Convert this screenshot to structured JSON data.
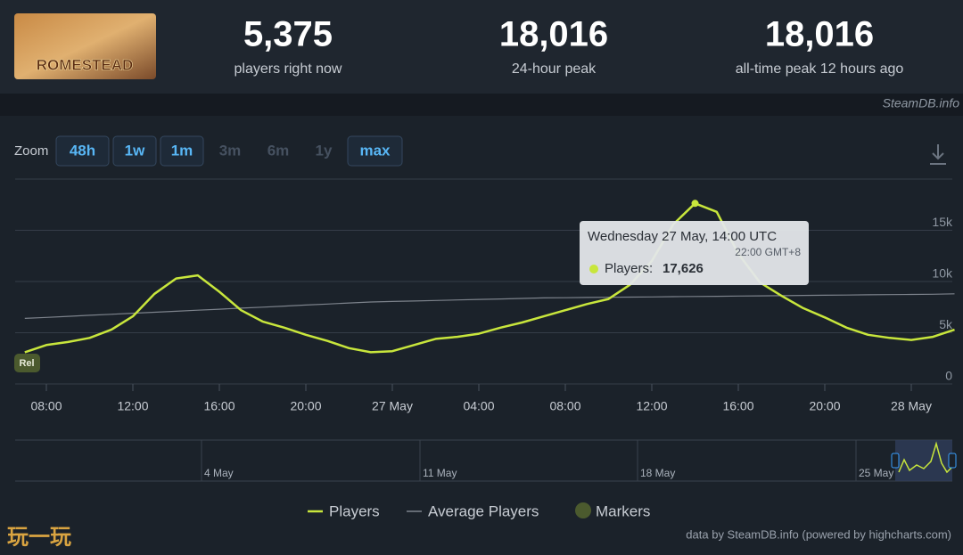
{
  "header": {
    "logo": "ROMESTEAD",
    "stats": [
      {
        "value": "5,375",
        "label": "players right now"
      },
      {
        "value": "18,016",
        "label": "24-hour peak"
      },
      {
        "value": "18,016",
        "label": "all-time peak 12 hours ago"
      }
    ]
  },
  "watermark": "SteamDB.info",
  "zoom": {
    "label": "Zoom",
    "buttons": [
      "48h",
      "1w",
      "1m",
      "3m",
      "6m",
      "1y",
      "max"
    ],
    "enabled": [
      true,
      true,
      true,
      false,
      false,
      false,
      true
    ]
  },
  "chart_data": {
    "type": "line",
    "categories": [
      null,
      "08:00",
      null,
      null,
      null,
      "12:00",
      null,
      null,
      null,
      "16:00",
      null,
      null,
      null,
      "20:00",
      null,
      null,
      null,
      "27 May",
      null,
      null,
      null,
      "04:00",
      null,
      null,
      null,
      "08:00",
      null,
      null,
      null,
      "12:00",
      null,
      null,
      null,
      "16:00",
      null,
      null,
      null,
      "20:00",
      null,
      null,
      null,
      "28 May",
      null,
      null
    ],
    "series": [
      {
        "name": "Players",
        "color": "#c8e63c",
        "values": [
          3100,
          3800,
          4100,
          4500,
          5300,
          6600,
          8800,
          10300,
          10600,
          9000,
          7200,
          6100,
          5500,
          4800,
          4200,
          3500,
          3100,
          3200,
          3800,
          4400,
          4600,
          4900,
          5500,
          6000,
          6600,
          7200,
          7800,
          8300,
          9700,
          12000,
          15600,
          17626,
          16800,
          12700,
          9900,
          8600,
          7400,
          6500,
          5500,
          4800,
          4500,
          4300,
          4600,
          5300
        ]
      },
      {
        "name": "Average Players",
        "color": "#7d838c",
        "values": [
          6400,
          6500,
          6600,
          6700,
          6800,
          6900,
          7000,
          7100,
          7200,
          7300,
          7400,
          7500,
          7600,
          7700,
          7800,
          7900,
          8000,
          8050,
          8100,
          8150,
          8200,
          8250,
          8300,
          8350,
          8400,
          8420,
          8440,
          8460,
          8480,
          8500,
          8520,
          8540,
          8560,
          8580,
          8600,
          8620,
          8640,
          8660,
          8680,
          8700,
          8720,
          8740,
          8760,
          8800
        ]
      }
    ],
    "ylim": [
      0,
      20000
    ],
    "yticks": [
      0,
      {
        "value": 5000,
        "label": "5k"
      },
      {
        "value": 10000,
        "label": "10k"
      },
      {
        "value": 15000,
        "label": "15k"
      },
      {
        "value": 20000,
        "label": ""
      }
    ],
    "grid": true,
    "markers": {
      "name": "Markers",
      "color": "#4b5a2e",
      "labels": [
        "Rel"
      ]
    },
    "tooltip": {
      "title": "Wednesday 27 May, 14:00 UTC",
      "subtitle": "22:00 GMT+8",
      "label": "Players:",
      "value": "17,626"
    }
  },
  "navigator": {
    "labels": [
      "4 May",
      "11 May",
      "18 May",
      "25 May"
    ]
  },
  "credits": "data by SteamDB.info (powered by highcharts.com)",
  "site_watermark": "玩一玩"
}
